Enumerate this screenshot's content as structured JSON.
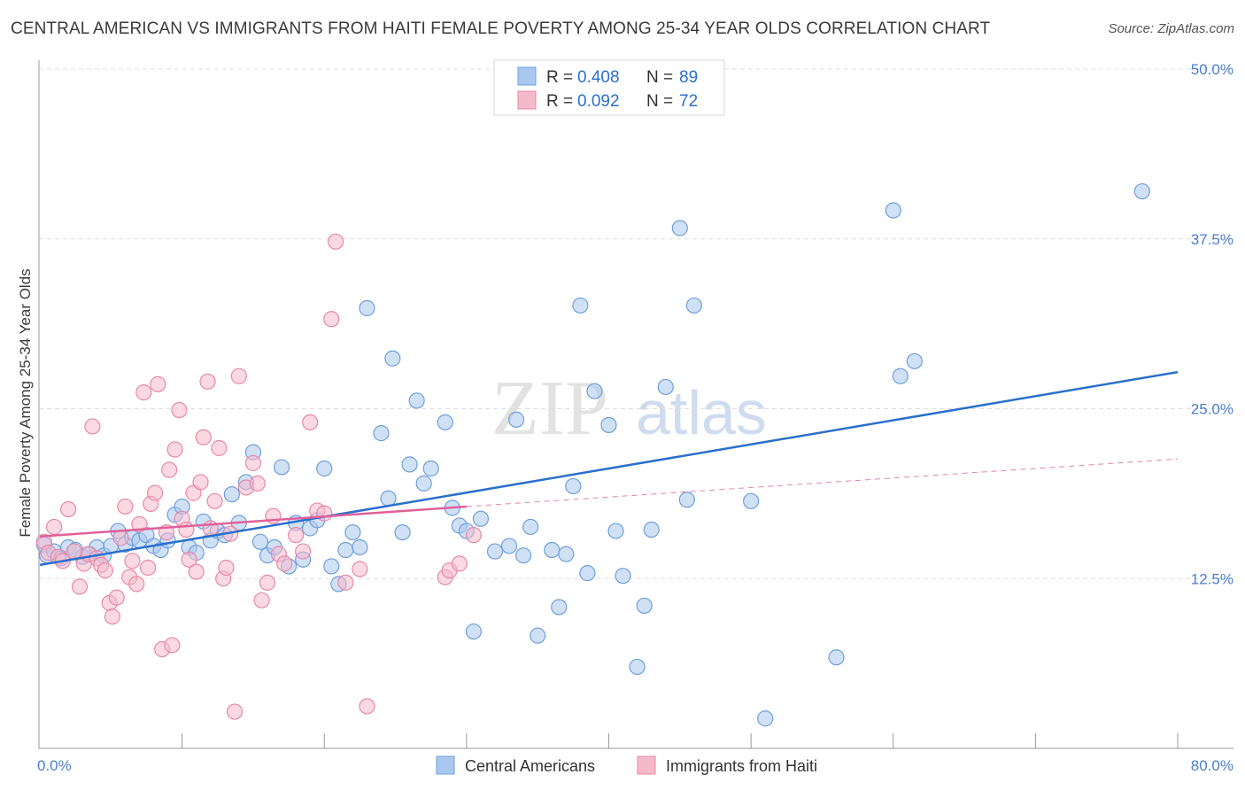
{
  "title": "CENTRAL AMERICAN VS IMMIGRANTS FROM HAITI FEMALE POVERTY AMONG 25-34 YEAR OLDS CORRELATION CHART",
  "source": "Source: ZipAtlas.com",
  "watermark": {
    "part1": "ZIP",
    "part2": "atlas"
  },
  "colors": {
    "blue_fill": "#aac8ef",
    "blue_stroke": "#6f9fdc",
    "blue_line": "#2a6fcc",
    "pink_fill": "#f5b9cc",
    "pink_stroke": "#e888a8",
    "pink_line": "#e0609a",
    "tick_label": "#4a7fcf",
    "grid": "#dddddd"
  },
  "legend_top": {
    "rows": [
      {
        "r_label": "R = ",
        "r_value": "0.408",
        "n_label": "N = ",
        "n_value": "89",
        "series": "blue"
      },
      {
        "r_label": "R = ",
        "r_value": "0.092",
        "n_label": "N = ",
        "n_value": "72",
        "series": "pink"
      }
    ]
  },
  "chart_data": {
    "type": "scatter",
    "title": "CENTRAL AMERICAN VS IMMIGRANTS FROM HAITI FEMALE POVERTY AMONG 25-34 YEAR OLDS CORRELATION CHART",
    "xlabel": "",
    "ylabel": "Female Poverty Among 25-34 Year Olds",
    "xlim": [
      0,
      80
    ],
    "ylim": [
      0,
      50
    ],
    "x_tick_labels": [
      "0.0%",
      "80.0%"
    ],
    "y_ticks": [
      12.5,
      25.0,
      37.5,
      50.0
    ],
    "y_tick_labels": [
      "12.5%",
      "25.0%",
      "37.5%",
      "50.0%"
    ],
    "grid": true,
    "legend_position": "top-center",
    "series": [
      {
        "name": "Central Americans",
        "color": "#6f9fdc",
        "trend": {
          "x": [
            0,
            80
          ],
          "y": [
            13.5,
            27.7
          ],
          "dashed_extension": false
        },
        "points": [
          [
            0.3,
            15.0
          ],
          [
            0.5,
            14.2
          ],
          [
            1.0,
            14.5
          ],
          [
            1.5,
            14.0
          ],
          [
            2.0,
            14.8
          ],
          [
            2.5,
            14.6
          ],
          [
            3.0,
            14.1
          ],
          [
            3.5,
            14.3
          ],
          [
            4.0,
            14.8
          ],
          [
            4.5,
            14.2
          ],
          [
            5.0,
            14.9
          ],
          [
            5.5,
            16.0
          ],
          [
            6.0,
            15.0
          ],
          [
            6.5,
            15.5
          ],
          [
            7.0,
            15.3
          ],
          [
            7.5,
            15.7
          ],
          [
            8.0,
            14.9
          ],
          [
            8.5,
            14.6
          ],
          [
            9.0,
            15.3
          ],
          [
            9.5,
            17.2
          ],
          [
            10.0,
            17.8
          ],
          [
            10.5,
            14.8
          ],
          [
            11.0,
            14.4
          ],
          [
            11.5,
            16.7
          ],
          [
            12.0,
            15.3
          ],
          [
            12.5,
            16.0
          ],
          [
            13.0,
            15.7
          ],
          [
            13.5,
            18.7
          ],
          [
            14.0,
            16.6
          ],
          [
            14.5,
            19.6
          ],
          [
            15.0,
            21.8
          ],
          [
            15.5,
            15.2
          ],
          [
            16.0,
            14.2
          ],
          [
            16.5,
            14.8
          ],
          [
            17.0,
            20.7
          ],
          [
            17.5,
            13.4
          ],
          [
            18.0,
            16.6
          ],
          [
            18.5,
            13.9
          ],
          [
            19.0,
            16.2
          ],
          [
            19.5,
            16.8
          ],
          [
            20.0,
            20.6
          ],
          [
            20.5,
            13.4
          ],
          [
            21.0,
            12.1
          ],
          [
            21.5,
            14.6
          ],
          [
            22.0,
            15.9
          ],
          [
            22.5,
            14.8
          ],
          [
            23.0,
            32.4
          ],
          [
            24.0,
            23.2
          ],
          [
            24.5,
            18.4
          ],
          [
            24.8,
            28.7
          ],
          [
            25.5,
            15.9
          ],
          [
            26.0,
            20.9
          ],
          [
            26.5,
            25.6
          ],
          [
            27.0,
            19.5
          ],
          [
            27.5,
            20.6
          ],
          [
            28.5,
            24.0
          ],
          [
            29.0,
            17.7
          ],
          [
            29.5,
            16.4
          ],
          [
            30.0,
            16.0
          ],
          [
            30.5,
            8.6
          ],
          [
            31.0,
            16.9
          ],
          [
            32.0,
            14.5
          ],
          [
            33.0,
            14.9
          ],
          [
            33.5,
            24.2
          ],
          [
            34.0,
            14.2
          ],
          [
            34.5,
            16.3
          ],
          [
            35.0,
            8.3
          ],
          [
            36.0,
            14.6
          ],
          [
            36.5,
            10.4
          ],
          [
            37.0,
            14.3
          ],
          [
            37.5,
            19.3
          ],
          [
            38.0,
            32.6
          ],
          [
            38.5,
            12.9
          ],
          [
            39.0,
            26.3
          ],
          [
            40.0,
            23.8
          ],
          [
            40.5,
            16.0
          ],
          [
            41.0,
            12.7
          ],
          [
            42.0,
            6.0
          ],
          [
            42.5,
            10.5
          ],
          [
            43.0,
            16.1
          ],
          [
            44.0,
            26.6
          ],
          [
            45.0,
            38.3
          ],
          [
            45.5,
            18.3
          ],
          [
            46.0,
            32.6
          ],
          [
            50.0,
            18.2
          ],
          [
            51.0,
            2.2
          ],
          [
            56.0,
            6.7
          ],
          [
            60.0,
            39.6
          ],
          [
            60.5,
            27.4
          ],
          [
            61.5,
            28.5
          ],
          [
            77.5,
            41.0
          ]
        ]
      },
      {
        "name": "Immigrants from Haiti",
        "color": "#e888a8",
        "trend": {
          "x": [
            0,
            30
          ],
          "y": [
            15.6,
            17.8
          ],
          "dashed_extension": true,
          "extension_to": [
            80,
            21.3
          ]
        },
        "points": [
          [
            0.3,
            15.2
          ],
          [
            0.6,
            14.4
          ],
          [
            1.0,
            16.3
          ],
          [
            1.3,
            14.1
          ],
          [
            1.6,
            13.8
          ],
          [
            2.0,
            17.6
          ],
          [
            2.4,
            14.5
          ],
          [
            2.8,
            11.9
          ],
          [
            3.1,
            13.6
          ],
          [
            3.4,
            14.3
          ],
          [
            3.7,
            23.7
          ],
          [
            4.0,
            14.0
          ],
          [
            4.3,
            13.5
          ],
          [
            4.6,
            13.1
          ],
          [
            4.9,
            10.7
          ],
          [
            5.1,
            9.7
          ],
          [
            5.4,
            11.1
          ],
          [
            5.7,
            15.5
          ],
          [
            6.0,
            17.8
          ],
          [
            6.3,
            12.6
          ],
          [
            6.5,
            13.8
          ],
          [
            6.8,
            12.1
          ],
          [
            7.0,
            16.5
          ],
          [
            7.3,
            26.2
          ],
          [
            7.6,
            13.3
          ],
          [
            7.8,
            18.0
          ],
          [
            8.1,
            18.8
          ],
          [
            8.3,
            26.8
          ],
          [
            8.6,
            7.3
          ],
          [
            8.9,
            15.9
          ],
          [
            9.1,
            20.5
          ],
          [
            9.3,
            7.6
          ],
          [
            9.5,
            22.0
          ],
          [
            9.8,
            24.9
          ],
          [
            10.0,
            16.9
          ],
          [
            10.3,
            16.1
          ],
          [
            10.5,
            13.9
          ],
          [
            10.8,
            18.8
          ],
          [
            11.0,
            13.0
          ],
          [
            11.3,
            19.6
          ],
          [
            11.5,
            22.9
          ],
          [
            11.8,
            27.0
          ],
          [
            12.0,
            16.2
          ],
          [
            12.3,
            18.2
          ],
          [
            12.6,
            22.1
          ],
          [
            12.9,
            12.5
          ],
          [
            13.1,
            13.3
          ],
          [
            13.4,
            15.8
          ],
          [
            13.7,
            2.7
          ],
          [
            14.0,
            27.4
          ],
          [
            14.5,
            19.2
          ],
          [
            15.0,
            21.0
          ],
          [
            15.3,
            19.5
          ],
          [
            15.6,
            10.9
          ],
          [
            16.0,
            12.2
          ],
          [
            16.4,
            17.1
          ],
          [
            16.8,
            14.3
          ],
          [
            17.2,
            13.6
          ],
          [
            18.0,
            15.7
          ],
          [
            18.5,
            14.5
          ],
          [
            19.0,
            24.0
          ],
          [
            19.5,
            17.5
          ],
          [
            20.0,
            17.3
          ],
          [
            20.5,
            31.6
          ],
          [
            20.8,
            37.3
          ],
          [
            21.5,
            12.2
          ],
          [
            22.5,
            13.2
          ],
          [
            23.0,
            3.1
          ],
          [
            28.5,
            12.6
          ],
          [
            28.8,
            13.1
          ],
          [
            29.5,
            13.6
          ],
          [
            30.5,
            15.7
          ]
        ]
      }
    ]
  },
  "legend_bottom": {
    "items": [
      {
        "label": "Central Americans",
        "series": "blue"
      },
      {
        "label": "Immigrants from Haiti",
        "series": "pink"
      }
    ]
  }
}
